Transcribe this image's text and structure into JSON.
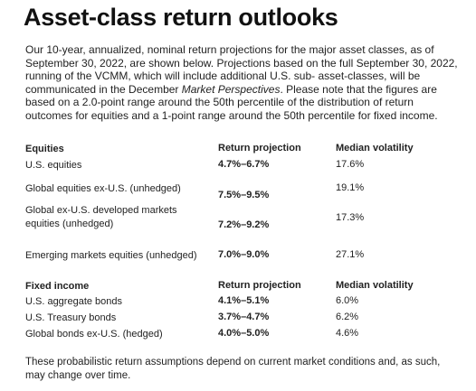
{
  "title": "Asset-class return outlooks",
  "intro": {
    "text_before": "Our 10-year, annualized, nominal return projections for the major asset classes, as of September 30, 2022, are shown below. Projections based on the full September 30, 2022, running of the VCMM, which will include additional U.S. sub- asset-classes, will be communicated in the December ",
    "italic": "Market Perspectives",
    "text_after": ". Please note that the figures are based on a 2.0-point range around the 50th percentile of the distribution of return outcomes for equities and a 1-point range around the 50th percentile for fixed income."
  },
  "equities": {
    "header": {
      "asset": "Equities",
      "projection": "Return projection",
      "volatility": "Median volatility"
    },
    "rows": [
      {
        "asset": "U.S. equities",
        "projection": "4.7%–6.7%",
        "volatility": "17.6%"
      },
      {
        "asset": "Global equities ex-U.S. (unhedged)",
        "projection": "7.5%–9.5%",
        "volatility": "19.1%"
      },
      {
        "asset": "Global ex-U.S. developed markets equities (unhedged)",
        "projection": "7.2%–9.2%",
        "volatility": "17.3%"
      },
      {
        "asset": "Emerging markets equities (unhedged)",
        "projection": "7.0%–9.0%",
        "volatility": "27.1%"
      }
    ]
  },
  "fixed_income": {
    "header": {
      "asset": "Fixed income",
      "projection": "Return projection",
      "volatility": "Median volatility"
    },
    "rows": [
      {
        "asset": "U.S. aggregate bonds",
        "projection": "4.1%–5.1%",
        "volatility": "6.0%"
      },
      {
        "asset": "U.S. Treasury bonds",
        "projection": "3.7%–4.7%",
        "volatility": "6.2%"
      },
      {
        "asset": "Global bonds ex-U.S. (hedged)",
        "projection": "4.0%–5.0%",
        "volatility": "4.6%"
      }
    ]
  },
  "footer": "These probabilistic return assumptions depend on current market conditions and, as such, may change over time."
}
